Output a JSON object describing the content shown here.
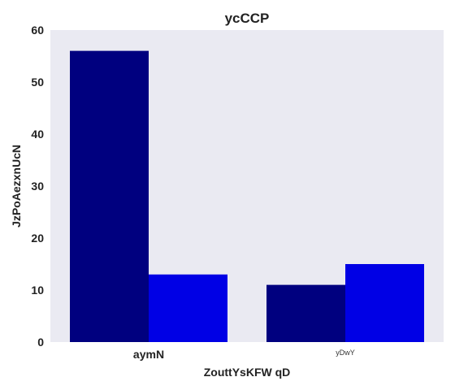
{
  "chart_data": {
    "type": "bar",
    "title": "ycCCP",
    "xlabel": "ZouttYsKFW  qD",
    "ylabel": "JzPoAezxnUcN",
    "categories": [
      "aymN",
      "yDwY"
    ],
    "category_label_style": [
      "bold",
      "small"
    ],
    "series": [
      {
        "values": [
          56,
          11
        ],
        "color": "#00007f"
      },
      {
        "values": [
          13,
          15
        ],
        "color": "#0000e5"
      }
    ],
    "ylim": [
      0,
      60
    ],
    "yticks": [
      0,
      10,
      20,
      30,
      40,
      50,
      60
    ],
    "grid": false,
    "legend": "none",
    "background": "#eaeaf2"
  }
}
